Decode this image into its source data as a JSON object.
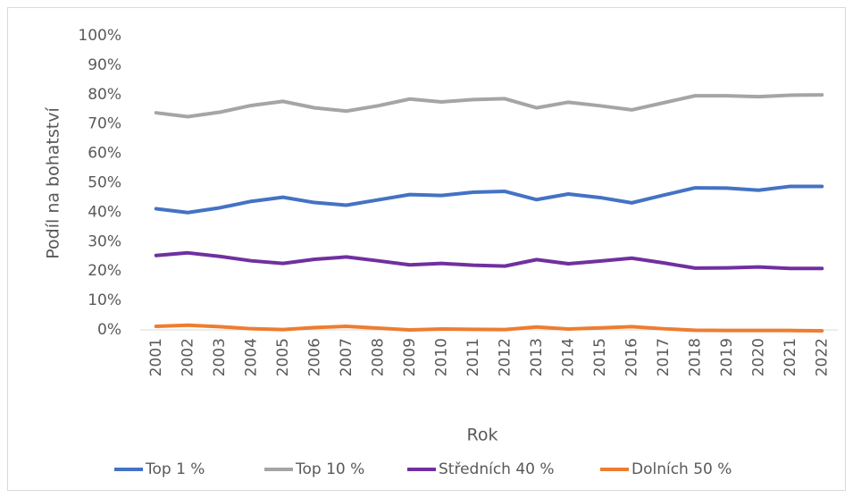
{
  "chart_data": {
    "type": "line",
    "x_label": "Rok",
    "y_label": "Podíl na bohatství",
    "categories": [
      "2001",
      "2002",
      "2003",
      "2004",
      "2005",
      "2006",
      "2007",
      "2008",
      "2009",
      "2010",
      "2011",
      "2012",
      "2013",
      "2014",
      "2015",
      "2016",
      "2017",
      "2018",
      "2019",
      "2020",
      "2021",
      "2022"
    ],
    "series": [
      {
        "name": "Top 1 %",
        "color": "#4472c4",
        "values": [
          41.2,
          39.9,
          41.5,
          43.7,
          45.1,
          43.3,
          42.4,
          44.2,
          46.0,
          45.7,
          46.8,
          47.1,
          44.3,
          46.2,
          45.0,
          43.2,
          45.8,
          48.3,
          48.2,
          47.5,
          48.8,
          48.8
        ]
      },
      {
        "name": "Top 10 %",
        "color": "#a5a5a5",
        "values": [
          73.8,
          72.5,
          74.0,
          76.3,
          77.7,
          75.5,
          74.4,
          76.2,
          78.5,
          77.5,
          78.3,
          78.6,
          75.5,
          77.4,
          76.2,
          74.8,
          77.2,
          79.6,
          79.6,
          79.3,
          79.8,
          79.9
        ]
      },
      {
        "name": "Středních 40 %",
        "color": "#7030a0",
        "values": [
          25.3,
          26.2,
          25.0,
          23.5,
          22.6,
          24.0,
          24.8,
          23.5,
          22.1,
          22.6,
          22.0,
          21.7,
          23.9,
          22.5,
          23.4,
          24.4,
          22.8,
          21.0,
          21.1,
          21.4,
          20.9,
          20.9
        ]
      },
      {
        "name": "Dolních 50 %",
        "color": "#ed7d31",
        "values": [
          1.2,
          1.6,
          1.1,
          0.4,
          0.1,
          0.8,
          1.2,
          0.6,
          0.0,
          0.3,
          0.2,
          0.1,
          1.0,
          0.3,
          0.7,
          1.1,
          0.4,
          -0.1,
          -0.2,
          -0.2,
          -0.2,
          -0.3
        ]
      }
    ],
    "ylim": [
      0,
      100
    ],
    "yticks": [
      {
        "value": 0,
        "label": "0%"
      },
      {
        "value": 10,
        "label": "10%"
      },
      {
        "value": 20,
        "label": "20%"
      },
      {
        "value": 30,
        "label": "30%"
      },
      {
        "value": 40,
        "label": "40%"
      },
      {
        "value": 50,
        "label": "50%"
      },
      {
        "value": 60,
        "label": "60%"
      },
      {
        "value": 70,
        "label": "70%"
      },
      {
        "value": 80,
        "label": "80%"
      },
      {
        "value": 90,
        "label": "90%"
      },
      {
        "value": 100,
        "label": "100%"
      }
    ],
    "grid": false,
    "legend": "bottom"
  }
}
